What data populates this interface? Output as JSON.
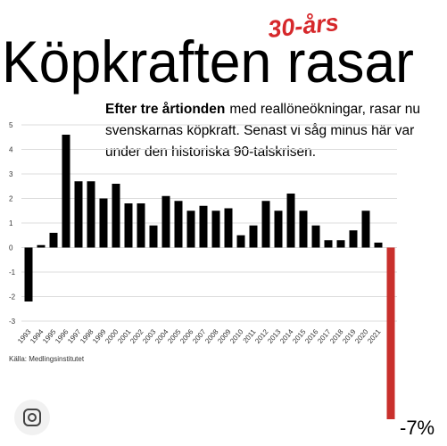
{
  "chart_data": {
    "type": "bar",
    "title": "Köpkraften rasar",
    "annotation": "30-års",
    "subtitle_bold": "Efter tre årtionden",
    "subtitle_lines": [
      "med reallöneökningar, rasar nu",
      "svenskarnas köpkraft. Senast vi såg minus här var",
      "under den historiska 90-talskrisen."
    ],
    "source": "Källa: Medlingsinstitutet",
    "categories": [
      "1993",
      "1994",
      "1995",
      "1996",
      "1997",
      "1998",
      "1999",
      "2000",
      "2001",
      "2002",
      "2003",
      "2004",
      "2005",
      "2006",
      "2007",
      "2008",
      "2009",
      "2010",
      "2011",
      "2012",
      "2013",
      "2014",
      "2015",
      "2016",
      "2017",
      "2018",
      "2019",
      "2020",
      "2021",
      null
    ],
    "values": [
      -2.2,
      0.1,
      0.6,
      4.6,
      2.7,
      2.7,
      2.0,
      2.6,
      1.8,
      1.8,
      0.9,
      2.1,
      1.9,
      1.5,
      1.7,
      1.5,
      1.6,
      0.5,
      0.9,
      1.9,
      1.5,
      2.2,
      1.5,
      0.9,
      0.3,
      0.3,
      0.7,
      1.5,
      0.2,
      -7
    ],
    "value_labels": [
      null,
      null,
      null,
      null,
      null,
      null,
      null,
      null,
      null,
      null,
      null,
      null,
      null,
      null,
      null,
      null,
      null,
      null,
      null,
      null,
      null,
      null,
      null,
      null,
      null,
      null,
      null,
      null,
      null,
      "-7%"
    ],
    "colors": [
      "#000000",
      "#000000",
      "#000000",
      "#000000",
      "#000000",
      "#000000",
      "#000000",
      "#000000",
      "#000000",
      "#000000",
      "#000000",
      "#000000",
      "#000000",
      "#000000",
      "#000000",
      "#000000",
      "#000000",
      "#000000",
      "#000000",
      "#000000",
      "#000000",
      "#000000",
      "#000000",
      "#000000",
      "#000000",
      "#000000",
      "#000000",
      "#000000",
      "#000000",
      "#c9302c"
    ],
    "ylim": [
      -3,
      5
    ],
    "yticks": [
      -3,
      -2,
      -1,
      0,
      1,
      2,
      3,
      4,
      5
    ],
    "grid": true
  }
}
